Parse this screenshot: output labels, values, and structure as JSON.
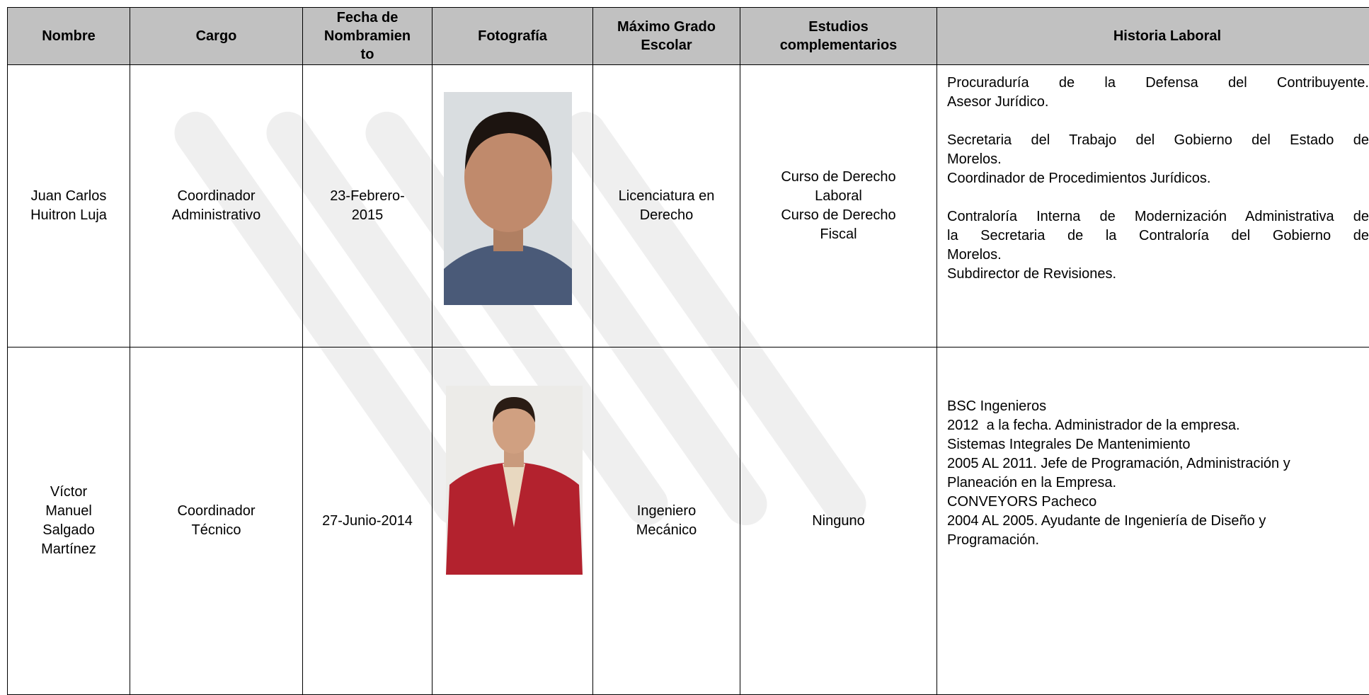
{
  "table": {
    "headers": [
      [
        "Nombre"
      ],
      [
        "Cargo"
      ],
      [
        "Fecha de",
        "Nombramien",
        "to"
      ],
      [
        "Fotografía"
      ],
      [
        "Máximo Grado",
        "Escolar"
      ],
      [
        "Estudios",
        "complementarios"
      ],
      [
        "Historia Laboral"
      ]
    ],
    "rows": [
      {
        "nombre": [
          "Juan Carlos",
          "Huitron Luja"
        ],
        "cargo": [
          "Coordinador",
          "Administrativo"
        ],
        "fecha": [
          "23-Febrero-",
          "2015"
        ],
        "grado": [
          "Licenciatura en",
          "Derecho"
        ],
        "estudios": [
          "Curso de Derecho",
          "Laboral",
          "Curso de Derecho",
          "Fiscal"
        ],
        "historia": [
          [
            "Procuraduría de la Defensa del Contribuyente.",
            "Asesor Jurídico."
          ],
          [
            "Secretaria del Trabajo del Gobierno del Estado de",
            "Morelos.",
            "Coordinador de Procedimientos Jurídicos."
          ],
          [
            "Contraloría Interna de Modernización Administrativa de",
            "la Secretaria de la Contraloría del Gobierno de",
            "Morelos.",
            "Subdirector de Revisiones."
          ]
        ]
      },
      {
        "nombre": [
          "Víctor",
          "Manuel",
          "Salgado",
          "Martínez"
        ],
        "cargo": [
          "Coordinador",
          "Técnico"
        ],
        "fecha": [
          "27-Junio-2014"
        ],
        "grado": [
          "Ingeniero",
          "Mecánico"
        ],
        "estudios": [
          "Ninguno"
        ],
        "historia": [
          [
            "BSC Ingenieros",
            "2012  a la fecha. Administrador de la empresa.",
            "Sistemas Integrales De Mantenimiento",
            "2005 AL 2011. Jefe de Programación, Administración y",
            "Planeación en la Empresa.",
            "CONVEYORS Pacheco",
            "2004 AL 2005. Ayudante de Ingeniería de Diseño y",
            "Programación."
          ]
        ]
      }
    ]
  }
}
